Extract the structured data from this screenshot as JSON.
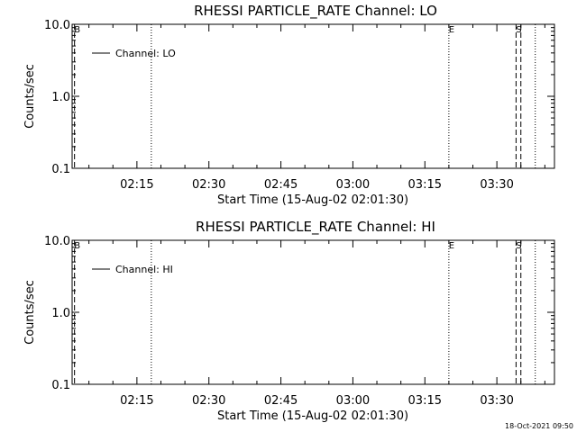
{
  "chart_data": [
    {
      "type": "line",
      "title": "RHESSI PARTICLE_RATE Channel: LO",
      "xlabel": "Start Time (15-Aug-02 02:01:30)",
      "ylabel": "Counts/sec",
      "yscale": "log",
      "ylim": [
        0.1,
        10.0
      ],
      "yticks": [
        "10.0",
        "1.0",
        "0.1"
      ],
      "xlim": [
        "02:01:30",
        "03:42:00"
      ],
      "xticks": [
        "02:15",
        "02:30",
        "02:45",
        "03:00",
        "03:15",
        "03:30"
      ],
      "series": [
        {
          "name": "Channel: LO",
          "values": []
        }
      ],
      "markers": [
        {
          "time": "02:02:00",
          "style": "dashed",
          "label": "B"
        },
        {
          "time": "02:18:00",
          "style": "dotted",
          "label": ""
        },
        {
          "time": "03:20:00",
          "style": "dotted",
          "label": "E"
        },
        {
          "time": "03:34:00",
          "style": "dashed",
          "label": "S"
        },
        {
          "time": "03:35:00",
          "style": "dashed",
          "label": ""
        },
        {
          "time": "03:38:00",
          "style": "dotted",
          "label": ""
        }
      ]
    },
    {
      "type": "line",
      "title": "RHESSI PARTICLE_RATE Channel: HI",
      "xlabel": "Start Time (15-Aug-02 02:01:30)",
      "ylabel": "Counts/sec",
      "yscale": "log",
      "ylim": [
        0.1,
        10.0
      ],
      "yticks": [
        "10.0",
        "1.0",
        "0.1"
      ],
      "xlim": [
        "02:01:30",
        "03:42:00"
      ],
      "xticks": [
        "02:15",
        "02:30",
        "02:45",
        "03:00",
        "03:15",
        "03:30"
      ],
      "series": [
        {
          "name": "Channel: HI",
          "values": []
        }
      ],
      "markers": [
        {
          "time": "02:02:00",
          "style": "dashed",
          "label": "B"
        },
        {
          "time": "02:18:00",
          "style": "dotted",
          "label": ""
        },
        {
          "time": "03:20:00",
          "style": "dotted",
          "label": "E"
        },
        {
          "time": "03:34:00",
          "style": "dashed",
          "label": "S"
        },
        {
          "time": "03:35:00",
          "style": "dashed",
          "label": ""
        },
        {
          "time": "03:38:00",
          "style": "dotted",
          "label": ""
        }
      ]
    }
  ],
  "footer": {
    "timestamp": "18-Oct-2021 09:50"
  }
}
